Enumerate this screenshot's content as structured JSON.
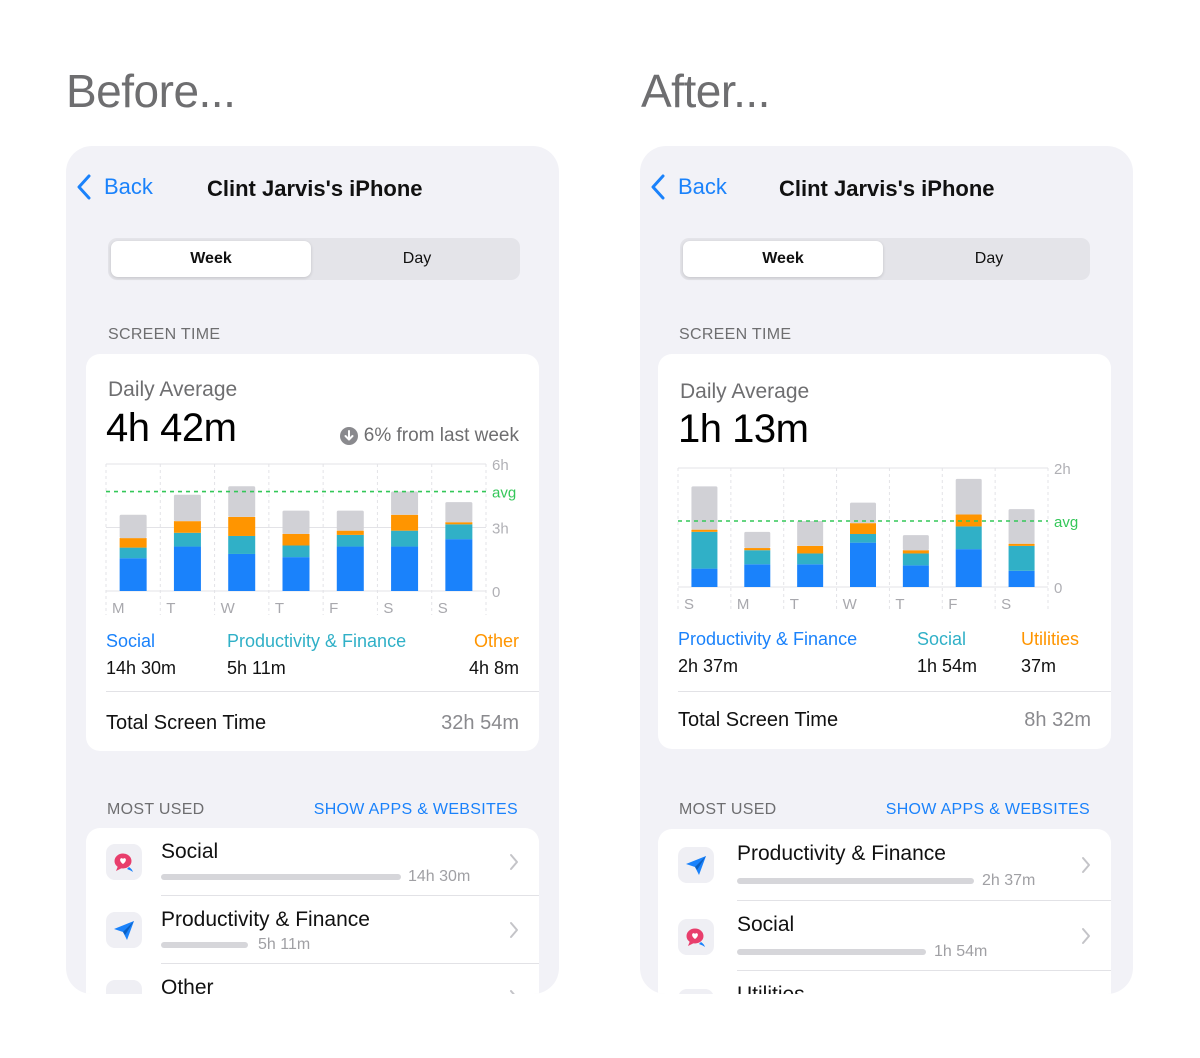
{
  "before": {
    "heading": "Before...",
    "nav": {
      "back_label": "Back",
      "title": "Clint Jarvis's iPhone"
    },
    "segment": {
      "week": "Week",
      "day": "Day"
    },
    "screen_time_label": "SCREEN TIME",
    "daily_average_label": "Daily Average",
    "daily_average_value": "4h 42m",
    "delta_text": "6% from last week",
    "legend": [
      {
        "name": "Social",
        "value": "14h 30m",
        "color": "#1a82fb"
      },
      {
        "name": "Productivity & Finance",
        "value": "5h 11m",
        "color": "#30b0c7"
      },
      {
        "name": "Other",
        "value": "4h 8m",
        "color": "#ff9500"
      }
    ],
    "total_label": "Total Screen Time",
    "total_value": "32h 54m",
    "most_used_label": "MOST USED",
    "show_apps_label": "SHOW APPS & WEBSITES",
    "apps": [
      {
        "name": "Social",
        "value": "14h 30m",
        "icon": "speech-bubble-heart-icon",
        "fraction": 1.0
      },
      {
        "name": "Productivity & Finance",
        "value": "5h 11m",
        "icon": "paper-plane-icon",
        "fraction": 0.36
      },
      {
        "name": "Other",
        "value": "",
        "icon": "app-icon",
        "fraction": 0.28
      }
    ]
  },
  "after": {
    "heading": "After...",
    "nav": {
      "back_label": "Back",
      "title": "Clint Jarvis's iPhone"
    },
    "segment": {
      "week": "Week",
      "day": "Day"
    },
    "screen_time_label": "SCREEN TIME",
    "daily_average_label": "Daily Average",
    "daily_average_value": "1h 13m",
    "legend": [
      {
        "name": "Productivity & Finance",
        "value": "2h 37m",
        "color": "#1a82fb"
      },
      {
        "name": "Social",
        "value": "1h 54m",
        "color": "#30b0c7"
      },
      {
        "name": "Utilities",
        "value": "37m",
        "color": "#ff9500"
      }
    ],
    "total_label": "Total Screen Time",
    "total_value": "8h 32m",
    "most_used_label": "MOST USED",
    "show_apps_label": "SHOW APPS & WEBSITES",
    "apps": [
      {
        "name": "Productivity & Finance",
        "value": "2h 37m",
        "icon": "paper-plane-icon",
        "fraction": 1.0
      },
      {
        "name": "Social",
        "value": "1h 54m",
        "icon": "speech-bubble-heart-icon",
        "fraction": 0.73
      },
      {
        "name": "Utilities",
        "value": "",
        "icon": "app-icon",
        "fraction": 0.24
      }
    ]
  },
  "chart_data": [
    {
      "type": "bar",
      "stacked": true,
      "categories": [
        "M",
        "T",
        "W",
        "T",
        "F",
        "S",
        "S"
      ],
      "series": [
        {
          "name": "Social",
          "color": "#1a82fb",
          "values": [
            1.55,
            2.1,
            1.75,
            1.6,
            2.1,
            2.1,
            2.45
          ]
        },
        {
          "name": "Productivity & Finance",
          "color": "#30b0c7",
          "values": [
            0.5,
            0.65,
            0.85,
            0.55,
            0.55,
            0.75,
            0.7
          ]
        },
        {
          "name": "Other",
          "color": "#ff9500",
          "values": [
            0.45,
            0.55,
            0.9,
            0.55,
            0.2,
            0.75,
            0.1
          ]
        },
        {
          "color": "#d1d1d6",
          "values": [
            1.1,
            1.25,
            1.45,
            1.1,
            0.95,
            1.1,
            0.95
          ]
        }
      ],
      "y_ticks": [
        "6h",
        "3h",
        "0"
      ],
      "ylim": [
        0,
        6
      ],
      "avg_label": "avg",
      "avg_value": 4.7,
      "avg_color": "#34c759",
      "grid": true
    },
    {
      "type": "bar",
      "stacked": true,
      "categories": [
        "S",
        "M",
        "T",
        "W",
        "T",
        "F",
        "S"
      ],
      "series": [
        {
          "name": "Productivity & Finance",
          "color": "#1a82fb",
          "values": [
            0.34,
            0.42,
            0.42,
            0.82,
            0.4,
            0.7,
            0.3
          ]
        },
        {
          "name": "Social",
          "color": "#30b0c7",
          "values": [
            0.68,
            0.26,
            0.2,
            0.16,
            0.22,
            0.42,
            0.46
          ]
        },
        {
          "name": "Utilities",
          "color": "#ff9500",
          "values": [
            0.04,
            0.04,
            0.14,
            0.2,
            0.06,
            0.22,
            0.04
          ]
        },
        {
          "color": "#d1d1d6",
          "values": [
            0.8,
            0.3,
            0.46,
            0.38,
            0.28,
            0.66,
            0.64
          ]
        }
      ],
      "y_ticks": [
        "2h",
        "0"
      ],
      "ylim": [
        0,
        2.2
      ],
      "avg_label": "avg",
      "avg_value": 1.22,
      "avg_color": "#34c759",
      "grid": true
    }
  ]
}
